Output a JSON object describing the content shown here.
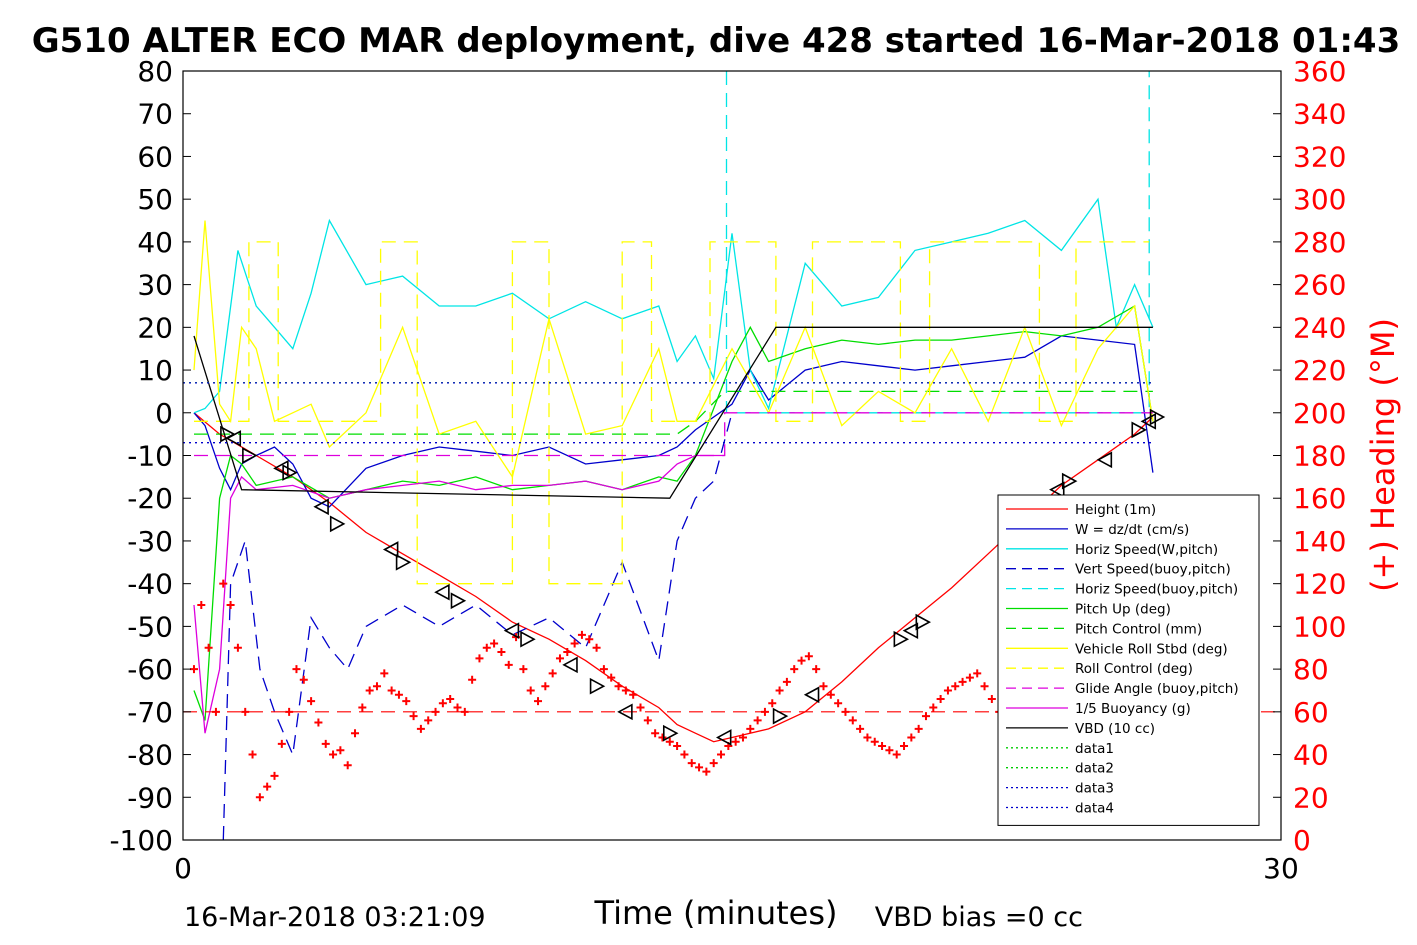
{
  "chart_data": {
    "type": "line",
    "title": "G510 ALTER ECO MAR deployment, dive 428 started 16-Mar-2018 01:43",
    "xlabel": "Time (minutes)",
    "ylabel_right": "(+) Heading (°M)",
    "xlim": [
      0,
      30
    ],
    "ylim_left": [
      -100,
      80
    ],
    "ylim_right": [
      0,
      360
    ],
    "x_ticks": [
      "0",
      "30"
    ],
    "y_ticks_left": [
      "80",
      "70",
      "60",
      "50",
      "40",
      "30",
      "20",
      "10",
      "0",
      "-10",
      "-20",
      "-30",
      "-40",
      "-50",
      "-60",
      "-70",
      "-80",
      "-90",
      "-100"
    ],
    "y_ticks_right": [
      "360",
      "340",
      "320",
      "300",
      "280",
      "260",
      "240",
      "220",
      "200",
      "180",
      "160",
      "140",
      "120",
      "100",
      "80",
      "60",
      "40",
      "20",
      "0"
    ],
    "grid": false,
    "legend_position": "lower-right",
    "footer_left": "16-Mar-2018 03:21:09",
    "footer_right": "VBD bias =0 cc",
    "colors": {
      "height": "#ff0000",
      "w": "#0000cc",
      "horiz_w": "#00e5e5",
      "vert_buoy": "#0000cc",
      "horiz_buoy": "#00e5e5",
      "pitch": "#00dd00",
      "pitch_ctrl": "#00dd00",
      "roll": "#ffff00",
      "roll_ctrl": "#ffff00",
      "glide": "#dd00dd",
      "buoy": "#dd00dd",
      "vbd": "#000000",
      "heading": "#ff0000",
      "data1": "#00cc00",
      "data2": "#00cc00",
      "data3": "#0000cc",
      "data4": "#0000cc",
      "right_axis": "#ff0000"
    },
    "legend": [
      {
        "label": "Height (1m)",
        "key": "height",
        "style": "solid"
      },
      {
        "label": "W = dz/dt (cm/s)",
        "key": "w",
        "style": "solid"
      },
      {
        "label": "Horiz Speed(W,pitch)",
        "key": "horiz_w",
        "style": "solid"
      },
      {
        "label": "Vert Speed(buoy,pitch)",
        "key": "vert_buoy",
        "style": "dashed"
      },
      {
        "label": "Horiz Speed(buoy,pitch)",
        "key": "horiz_buoy",
        "style": "dashed"
      },
      {
        "label": "Pitch Up (deg)",
        "key": "pitch",
        "style": "solid"
      },
      {
        "label": "Pitch Control (mm)",
        "key": "pitch_ctrl",
        "style": "dashed"
      },
      {
        "label": "Vehicle Roll Stbd (deg)",
        "key": "roll",
        "style": "solid"
      },
      {
        "label": "Roll Control (deg)",
        "key": "roll_ctrl",
        "style": "dashed"
      },
      {
        "label": "Glide Angle (buoy,pitch)",
        "key": "glide",
        "style": "dashed"
      },
      {
        "label": "1/5 Buoyancy (g)",
        "key": "buoy",
        "style": "solid"
      },
      {
        "label": "VBD (10 cc)",
        "key": "vbd",
        "style": "solid"
      },
      {
        "label": "data1",
        "key": "data1",
        "style": "dotted"
      },
      {
        "label": "data2",
        "key": "data2",
        "style": "dotted"
      },
      {
        "label": "data3",
        "key": "data3",
        "style": "dotted"
      },
      {
        "label": "data4",
        "key": "data4",
        "style": "dotted"
      }
    ],
    "series": [
      {
        "key": "height",
        "style": "solid",
        "x": [
          0.3,
          1,
          2,
          3,
          4,
          5,
          6,
          7,
          8,
          9,
          10,
          11,
          12,
          13,
          13.5,
          14,
          14.5,
          15,
          16,
          17,
          18,
          19,
          20,
          21,
          22,
          23,
          24,
          25,
          26,
          26.5
        ],
        "y": [
          0,
          -5,
          -10,
          -15,
          -21,
          -28,
          -33,
          -38,
          -43,
          -49,
          -53,
          -58,
          -64,
          -69,
          -73,
          -75,
          -77,
          -76,
          -74,
          -70,
          -63,
          -55,
          -48,
          -41,
          -33,
          -25,
          -17,
          -11,
          -5,
          -1
        ]
      },
      {
        "key": "w",
        "style": "solid",
        "x": [
          0.3,
          0.6,
          1,
          1.3,
          1.6,
          2,
          2.5,
          3,
          3.5,
          4,
          5,
          6,
          7,
          8,
          9,
          10,
          11,
          12,
          13,
          13.5,
          14,
          15,
          15.5,
          16,
          17,
          18,
          19,
          20,
          21,
          22,
          23,
          24,
          25,
          26,
          26.5
        ],
        "y": [
          0,
          -3,
          -13,
          -18,
          -12,
          -10,
          -8,
          -12,
          -20,
          -22,
          -13,
          -10,
          -8,
          -9,
          -10,
          -8,
          -12,
          -11,
          -10,
          -8,
          -4,
          2,
          10,
          3,
          10,
          12,
          11,
          10,
          11,
          12,
          13,
          18,
          17,
          16,
          -14
        ]
      },
      {
        "key": "horiz_w",
        "style": "solid",
        "x": [
          0.3,
          0.6,
          1,
          1.5,
          2,
          2.5,
          3,
          3.5,
          4,
          5,
          6,
          7,
          8,
          9,
          10,
          11,
          12,
          13,
          13.5,
          14,
          14.5,
          15,
          15.5,
          16,
          17,
          18,
          19,
          20,
          21,
          22,
          23,
          24,
          25,
          25.5,
          26,
          26.5
        ],
        "y": [
          0,
          1,
          5,
          38,
          25,
          20,
          15,
          28,
          45,
          30,
          32,
          25,
          25,
          28,
          22,
          26,
          22,
          25,
          12,
          18,
          8,
          42,
          10,
          1,
          35,
          25,
          27,
          38,
          40,
          42,
          45,
          38,
          50,
          20,
          30,
          20
        ]
      },
      {
        "key": "vert_buoy",
        "style": "dashed",
        "x": [
          1.1,
          1.3,
          1.7,
          2.1,
          2.5,
          3,
          3.5,
          4,
          4.5,
          5,
          6,
          7,
          8,
          9,
          10,
          11,
          12,
          13,
          13.5,
          14,
          14.5,
          15
        ],
        "y": [
          -100,
          -40,
          -30,
          -60,
          -70,
          -80,
          -48,
          -55,
          -60,
          -50,
          -45,
          -50,
          -45,
          -52,
          -48,
          -55,
          -35,
          -58,
          -30,
          -20,
          -16,
          0
        ]
      },
      {
        "key": "horiz_buoy",
        "style": "dashed",
        "x": [
          14.85,
          14.85,
          15,
          26.4,
          26.4
        ],
        "y": [
          80,
          0,
          0,
          0,
          80
        ]
      },
      {
        "key": "pitch",
        "style": "solid",
        "x": [
          0.3,
          0.6,
          1,
          1.3,
          1.6,
          2,
          3,
          4,
          5,
          6,
          7,
          8,
          9,
          10,
          11,
          12,
          13,
          13.5,
          14,
          15,
          15.5,
          16,
          17,
          18,
          19,
          20,
          21,
          22,
          23,
          24,
          25,
          26,
          26.5
        ],
        "y": [
          -65,
          -72,
          -20,
          -10,
          -12,
          -17,
          -15,
          -20,
          -18,
          -16,
          -17,
          -15,
          -18,
          -17,
          -16,
          -18,
          -15,
          -16,
          -10,
          12,
          20,
          12,
          15,
          17,
          16,
          17,
          17,
          18,
          19,
          18,
          20,
          25,
          -2
        ]
      },
      {
        "key": "pitch_ctrl",
        "style": "dashed",
        "x": [
          0.3,
          1.2,
          13.5,
          14,
          14.8,
          26.5
        ],
        "y": [
          -5,
          -5,
          -5,
          -2,
          5,
          5
        ]
      },
      {
        "key": "roll",
        "style": "solid",
        "x": [
          0.3,
          0.6,
          1,
          1.3,
          1.6,
          2,
          2.5,
          3,
          3.5,
          4,
          5,
          6,
          7,
          8,
          9,
          10,
          11,
          12,
          13,
          13.5,
          14,
          15,
          16,
          17,
          18,
          19,
          20,
          21,
          22,
          23,
          24,
          25,
          26,
          26.5
        ],
        "y": [
          10,
          45,
          2,
          -2,
          20,
          15,
          -2,
          0,
          2,
          -8,
          0,
          20,
          -5,
          -2,
          -15,
          22,
          -5,
          -3,
          15,
          -2,
          -2,
          15,
          0,
          20,
          -3,
          5,
          0,
          15,
          -2,
          20,
          -3,
          15,
          25,
          -2
        ]
      },
      {
        "key": "roll_ctrl",
        "style": "dashed",
        "x": [
          0.3,
          1.8,
          1.8,
          2.6,
          2.6,
          5.4,
          5.4,
          6.4,
          6.4,
          9,
          9,
          10,
          10,
          12,
          12,
          12.8,
          12.8,
          14.4,
          14.4,
          16.2,
          16.2,
          17.2,
          17.2,
          19.6,
          19.6,
          20.4,
          20.4,
          23.4,
          23.4,
          24.4,
          24.4,
          26.4
        ],
        "y": [
          -2,
          -2,
          40,
          40,
          -2,
          -2,
          40,
          40,
          -40,
          -40,
          40,
          40,
          -40,
          -40,
          40,
          40,
          -2,
          -2,
          40,
          40,
          -2,
          -2,
          40,
          40,
          -2,
          -2,
          40,
          40,
          -2,
          -2,
          40,
          40
        ]
      },
      {
        "key": "glide",
        "style": "dashed",
        "x": [
          0.3,
          1.2,
          13.5,
          14.8,
          14.8,
          26.5
        ],
        "y": [
          -10,
          -10,
          -10,
          -10,
          0,
          0
        ]
      },
      {
        "key": "buoy",
        "style": "solid",
        "x": [
          0.3,
          0.6,
          1,
          1.3,
          1.6,
          2,
          3,
          4,
          5,
          6,
          7,
          8,
          9,
          10,
          11,
          12,
          13,
          13.5,
          14,
          14.8
        ],
        "y": [
          -45,
          -75,
          -60,
          -20,
          -15,
          -18,
          -17,
          -20,
          -18,
          -17,
          -16,
          -18,
          -17,
          -17,
          -16,
          -18,
          -16,
          -12,
          -10,
          -10
        ]
      },
      {
        "key": "vbd",
        "style": "solid",
        "x": [
          0.3,
          1.6,
          13.3,
          16.2,
          26.5
        ],
        "y": [
          18,
          -18,
          -20,
          20,
          20
        ]
      },
      {
        "key": "data1",
        "style": "dotted",
        "x": [
          0,
          26.5
        ],
        "y": [
          7,
          7
        ]
      },
      {
        "key": "data2",
        "style": "dotted",
        "x": [
          0,
          26.5
        ],
        "y": [
          7,
          7
        ]
      },
      {
        "key": "data3",
        "style": "dotted",
        "x": [
          0,
          26.5
        ],
        "y": [
          7,
          7
        ]
      },
      {
        "key": "data4",
        "style": "dotted",
        "x": [
          0,
          26.5
        ],
        "y": [
          -7,
          -7
        ]
      }
    ],
    "heading_reference": {
      "axis": "right",
      "style": "dashed",
      "y": 60
    },
    "heading_points": {
      "axis": "right",
      "marker": "plus",
      "x": [
        0.3,
        0.5,
        0.7,
        0.9,
        1.1,
        1.3,
        1.5,
        1.7,
        1.9,
        2.1,
        2.3,
        2.5,
        2.7,
        2.9,
        3.1,
        3.3,
        3.5,
        3.7,
        3.9,
        4.1,
        4.3,
        4.5,
        4.7,
        4.9,
        5.1,
        5.3,
        5.5,
        5.7,
        5.9,
        6.1,
        6.3,
        6.5,
        6.7,
        6.9,
        7.1,
        7.3,
        7.5,
        7.7,
        7.9,
        8.1,
        8.3,
        8.5,
        8.7,
        8.9,
        9.1,
        9.3,
        9.5,
        9.7,
        9.9,
        10.1,
        10.3,
        10.5,
        10.7,
        10.9,
        11.1,
        11.3,
        11.5,
        11.7,
        11.9,
        12.1,
        12.3,
        12.5,
        12.7,
        12.9,
        13.1,
        13.3,
        13.5,
        13.7,
        13.9,
        14.1,
        14.3,
        14.5,
        14.7,
        14.9,
        15.1,
        15.3,
        15.5,
        15.7,
        15.9,
        16.1,
        16.3,
        16.5,
        16.7,
        16.9,
        17.1,
        17.3,
        17.5,
        17.7,
        17.9,
        18.1,
        18.3,
        18.5,
        18.7,
        18.9,
        19.1,
        19.3,
        19.5,
        19.7,
        19.9,
        20.1,
        20.3,
        20.5,
        20.7,
        20.9,
        21.1,
        21.3,
        21.5,
        21.7,
        21.9,
        22.1,
        22.3
      ],
      "y": [
        80,
        110,
        90,
        60,
        120,
        110,
        90,
        60,
        40,
        20,
        25,
        30,
        45,
        60,
        80,
        75,
        65,
        55,
        45,
        40,
        42,
        35,
        50,
        62,
        70,
        72,
        78,
        70,
        68,
        65,
        58,
        52,
        56,
        60,
        64,
        66,
        62,
        60,
        75,
        85,
        90,
        92,
        88,
        82,
        95,
        80,
        70,
        65,
        72,
        78,
        85,
        88,
        92,
        96,
        94,
        90,
        80,
        76,
        72,
        70,
        68,
        62,
        56,
        50,
        48,
        46,
        44,
        40,
        36,
        34,
        32,
        36,
        40,
        44,
        46,
        48,
        52,
        56,
        60,
        64,
        70,
        74,
        80,
        84,
        86,
        80,
        72,
        68,
        64,
        60,
        56,
        52,
        48,
        46,
        44,
        42,
        40,
        44,
        48,
        52,
        58,
        62,
        66,
        70,
        72,
        74,
        76,
        78,
        72,
        66,
        60
      ]
    },
    "direction_markers": {
      "marker": "triangle",
      "x": [
        1.2,
        1.4,
        1.8,
        2.7,
        2.9,
        3.8,
        4.2,
        5.7,
        6,
        7.1,
        7.5,
        9,
        9.4,
        10.6,
        11.3,
        12.1,
        13.3,
        14.8,
        16.3,
        17.2,
        19.6,
        19.9,
        20.2,
        23.9,
        24.2,
        25.2,
        26.1,
        26.4,
        26.6
      ],
      "y": [
        -5,
        -6,
        -10,
        -13,
        -14,
        -22,
        -26,
        -32,
        -35,
        -42,
        -44,
        -51,
        -53,
        -59,
        -64,
        -70,
        -75,
        -76,
        -71,
        -66,
        -53,
        -51,
        -49,
        -18,
        -16,
        -11,
        -4,
        -2,
        -1
      ]
    }
  }
}
